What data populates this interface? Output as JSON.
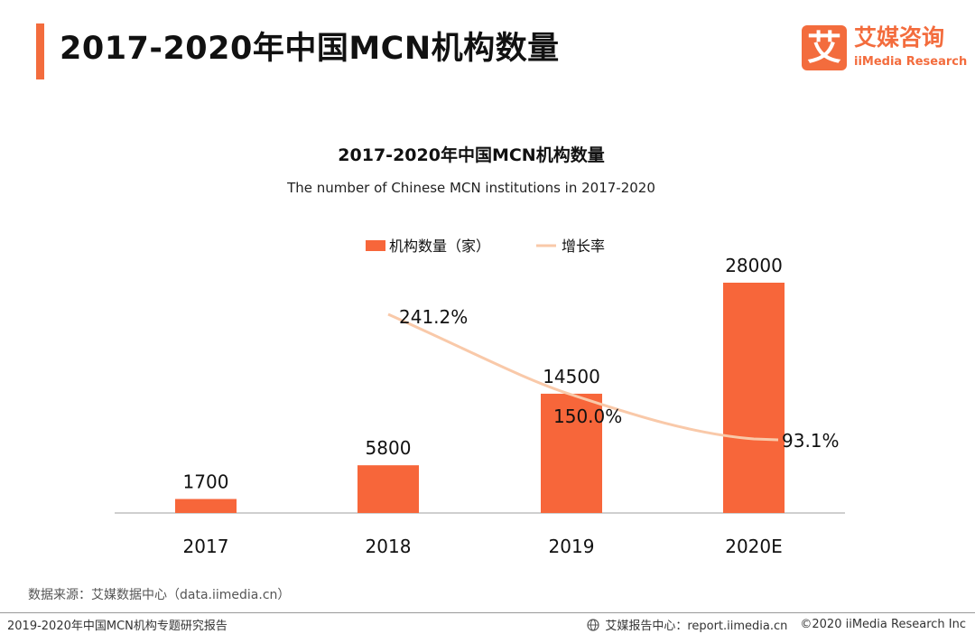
{
  "header": {
    "title": "2017-2020年中国MCN机构数量"
  },
  "logo": {
    "mark": "艾",
    "cn": "艾媒咨询",
    "en": "iiMedia Research"
  },
  "chart_data": {
    "type": "bar",
    "title": "2017-2020年中国MCN机构数量",
    "subtitle": "The number of Chinese MCN institutions in 2017-2020",
    "categories": [
      "2017",
      "2018",
      "2019",
      "2020E"
    ],
    "series": [
      {
        "name": "机构数量（家）",
        "type": "bar",
        "values": [
          1700,
          5800,
          14500,
          28000
        ],
        "labels": [
          "1700",
          "5800",
          "14500",
          "28000"
        ]
      },
      {
        "name": "增长率",
        "type": "line",
        "values": [
          null,
          241.2,
          150.0,
          93.1
        ],
        "labels": [
          "",
          "241.2%",
          "150.0%",
          "93.1%"
        ]
      }
    ],
    "ylim": [
      0,
      28000
    ],
    "legend": "top-center",
    "grid": false,
    "colors": {
      "bar": "#f7663a",
      "line": "#f9c9a9"
    }
  },
  "footer": {
    "source": "数据来源：艾媒数据中心（data.iimedia.cn）",
    "report": "2019-2020年中国MCN机构专题研究报告",
    "center": "艾媒报告中心：report.iimedia.cn",
    "copyright": "©2020  iiMedia Research  Inc"
  }
}
